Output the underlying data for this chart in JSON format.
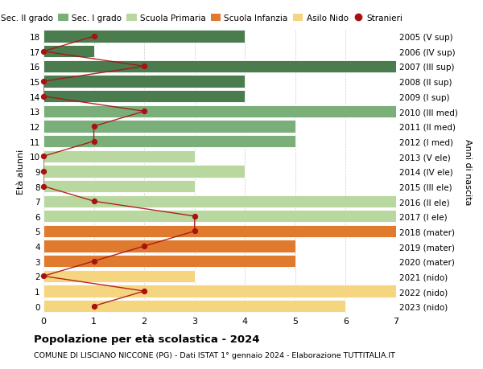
{
  "title": "Popolazione per età scolastica - 2024",
  "subtitle": "COMUNE DI LISCIANO NICCONE (PG) - Dati ISTAT 1° gennaio 2024 - Elaborazione TUTTITALIA.IT",
  "ylabel_left": "Età alunni",
  "ylabel_right": "Anni di nascita",
  "xlim": [
    0,
    7
  ],
  "ages": [
    0,
    1,
    2,
    3,
    4,
    5,
    6,
    7,
    8,
    9,
    10,
    11,
    12,
    13,
    14,
    15,
    16,
    17,
    18
  ],
  "right_labels": [
    "2023 (nido)",
    "2022 (nido)",
    "2021 (nido)",
    "2020 (mater)",
    "2019 (mater)",
    "2018 (mater)",
    "2017 (I ele)",
    "2016 (II ele)",
    "2015 (III ele)",
    "2014 (IV ele)",
    "2013 (V ele)",
    "2012 (I med)",
    "2011 (II med)",
    "2010 (III med)",
    "2009 (I sup)",
    "2008 (II sup)",
    "2007 (III sup)",
    "2006 (IV sup)",
    "2005 (V sup)"
  ],
  "bar_values": [
    6,
    7,
    3,
    5,
    5,
    7,
    7,
    7,
    3,
    4,
    3,
    5,
    5,
    7,
    4,
    4,
    7,
    1,
    4
  ],
  "bar_colors": [
    "#f5d580",
    "#f5d580",
    "#f5d580",
    "#e07a2f",
    "#e07a2f",
    "#e07a2f",
    "#b8d8a0",
    "#b8d8a0",
    "#b8d8a0",
    "#b8d8a0",
    "#b8d8a0",
    "#7aaf7a",
    "#7aaf7a",
    "#7aaf7a",
    "#4a7c4e",
    "#4a7c4e",
    "#4a7c4e",
    "#4a7c4e",
    "#4a7c4e"
  ],
  "stranieri_x": [
    1,
    2,
    0,
    1,
    2,
    3,
    3,
    1,
    0,
    0,
    0,
    1,
    1,
    2,
    0,
    0,
    2,
    0,
    1
  ],
  "legend_items": [
    {
      "label": "Sec. II grado",
      "color": "#4a7c4e"
    },
    {
      "label": "Sec. I grado",
      "color": "#7aaf7a"
    },
    {
      "label": "Scuola Primaria",
      "color": "#b8d8a0"
    },
    {
      "label": "Scuola Infanzia",
      "color": "#e07a2f"
    },
    {
      "label": "Asilo Nido",
      "color": "#f5d580"
    },
    {
      "label": "Stranieri",
      "color": "#aa1111"
    }
  ],
  "line_color": "#aa1111",
  "bg_color": "#ffffff",
  "grid_color": "#cccccc"
}
